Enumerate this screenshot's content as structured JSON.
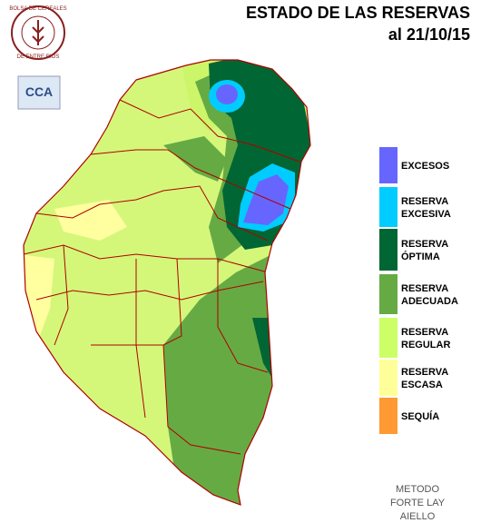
{
  "header": {
    "title": "ESTADO DE LAS RESERVAS",
    "date": "al 21/10/15"
  },
  "logos": {
    "bolsa_top": "BOLSA DE CEREALES",
    "bolsa_bottom": "DE ENTRE RIOS",
    "cca": "CCA"
  },
  "legend": {
    "items": [
      {
        "lines": [
          "EXCESOS"
        ],
        "color": "#6666ff"
      },
      {
        "lines": [
          "RESERVA",
          "EXCESIVA"
        ],
        "color": "#00ccff"
      },
      {
        "lines": [
          "RESERVA",
          "ÓPTIMA"
        ],
        "color": "#006633"
      },
      {
        "lines": [
          "RESERVA",
          "ADECUADA"
        ],
        "color": "#66aa44"
      },
      {
        "lines": [
          "RESERVA",
          "REGULAR"
        ],
        "color": "#ccff66"
      },
      {
        "lines": [
          "RESERVA",
          "ESCASA"
        ],
        "color": "#ffff99"
      },
      {
        "lines": [
          "SEQUÍA"
        ],
        "color": "#ff9933"
      }
    ]
  },
  "footer": {
    "lines": [
      "METODO",
      "FORTE LAY",
      "AIELLO"
    ]
  }
}
